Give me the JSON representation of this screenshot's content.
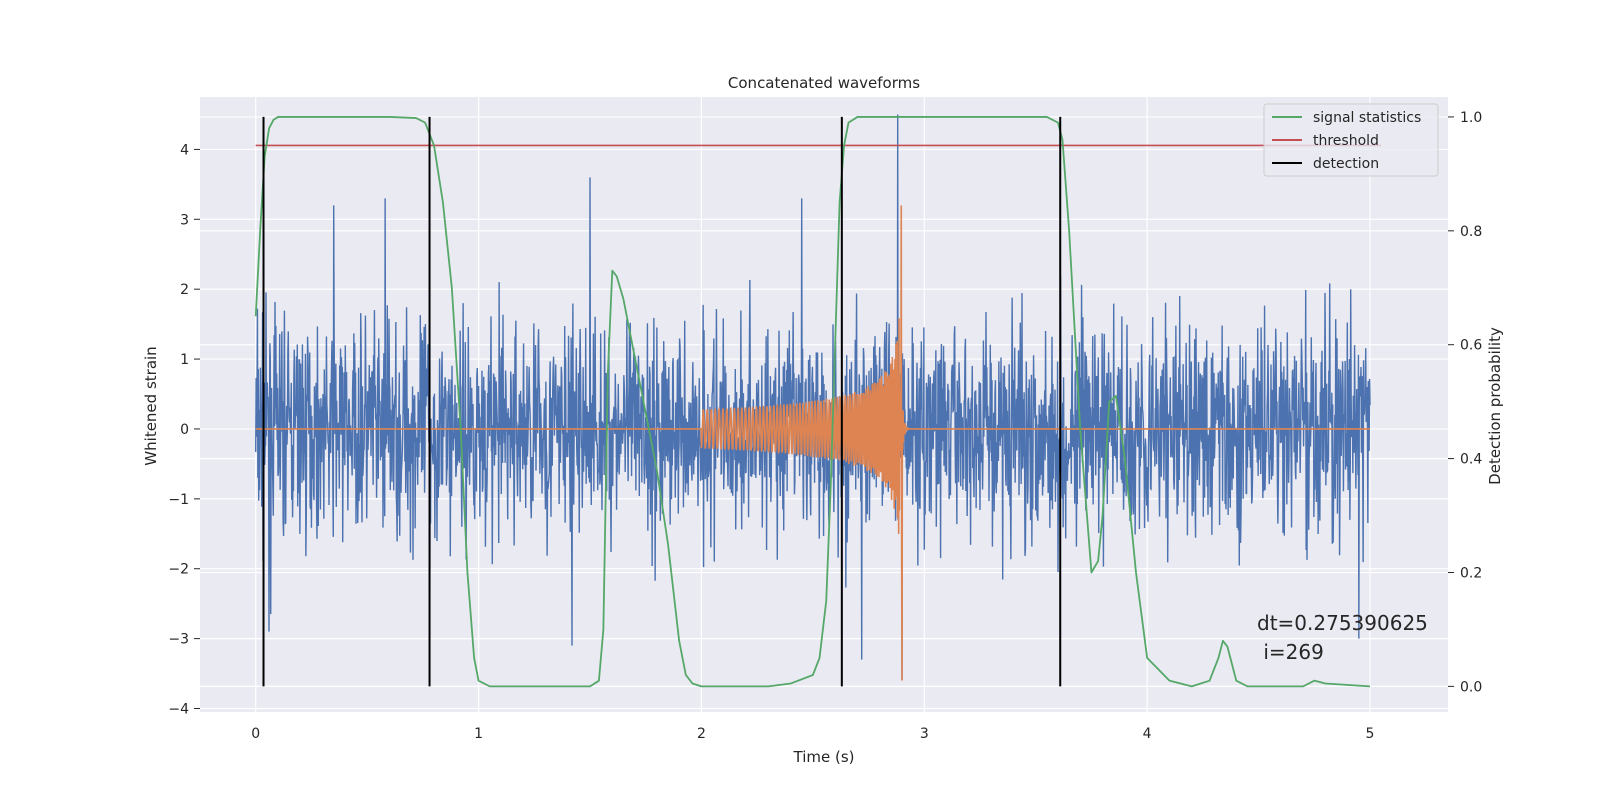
{
  "chart_data": {
    "type": "line",
    "title": "Concatenated waveforms",
    "xlabel": "Time (s)",
    "ylabel": "Whitened strain",
    "y2label": "Detection probability",
    "xlim": [
      -0.25,
      5.35
    ],
    "ylim": [
      -4.05,
      4.75
    ],
    "y2lim": [
      -0.045,
      1.035
    ],
    "xticks": [
      0,
      1,
      2,
      3,
      4,
      5
    ],
    "yticks": [
      -4,
      -3,
      -2,
      -1,
      0,
      1,
      2,
      3,
      4
    ],
    "y2ticks": [
      0.0,
      0.2,
      0.4,
      0.6,
      0.8,
      1.0
    ],
    "x_tick_labels": [
      "0",
      "1",
      "2",
      "3",
      "4",
      "5"
    ],
    "y_tick_labels": [
      "−4",
      "−3",
      "−2",
      "−1",
      "0",
      "1",
      "2",
      "3",
      "4"
    ],
    "y2_tick_labels": [
      "0.0",
      "0.2",
      "0.4",
      "0.6",
      "0.8",
      "1.0"
    ],
    "grid": true,
    "legend_position": "top-right",
    "colors": {
      "strain": "#4c72b0",
      "template": "#dd8452",
      "signal_statistics": "#55a868",
      "threshold": "#c44e52",
      "detection": "#000000",
      "background": "#eaeaf2",
      "grid": "#ffffff"
    },
    "series": [
      {
        "name": "",
        "axis": "left",
        "kind": "noise",
        "x_range": [
          0,
          5
        ],
        "amplitude_envelope": 1.25,
        "peaks": [
          [
            0.35,
            3.2
          ],
          [
            0.58,
            3.3
          ],
          [
            1.5,
            3.6
          ],
          [
            2.45,
            3.3
          ],
          [
            2.88,
            4.5
          ]
        ],
        "troughs": [
          [
            0.06,
            -2.9
          ],
          [
            0.78,
            -2.9
          ],
          [
            1.42,
            -3.1
          ],
          [
            2.72,
            -3.3
          ],
          [
            2.9,
            -3.6
          ],
          [
            4.95,
            -3.0
          ]
        ]
      },
      {
        "name": "",
        "axis": "left",
        "kind": "chirp",
        "x_range": [
          0,
          5
        ],
        "chirp_start": 2.0,
        "merger": 2.9,
        "start_amplitude": 0.28,
        "peak": 3.2,
        "trough": -3.6
      },
      {
        "name": "signal statistics",
        "axis": "right",
        "x": [
          0.0,
          0.02,
          0.04,
          0.06,
          0.08,
          0.1,
          0.15,
          0.3,
          0.6,
          0.72,
          0.76,
          0.8,
          0.84,
          0.88,
          0.92,
          0.95,
          0.98,
          1.0,
          1.05,
          1.2,
          1.4,
          1.5,
          1.54,
          1.56,
          1.58,
          1.6,
          1.62,
          1.65,
          1.7,
          1.75,
          1.8,
          1.85,
          1.9,
          1.93,
          1.96,
          2.0,
          2.1,
          2.3,
          2.4,
          2.5,
          2.53,
          2.56,
          2.58,
          2.6,
          2.62,
          2.64,
          2.66,
          2.7,
          2.75,
          2.8,
          3.0,
          3.3,
          3.55,
          3.6,
          3.62,
          3.65,
          3.7,
          3.75,
          3.78,
          3.8,
          3.83,
          3.86,
          3.9,
          3.95,
          4.0,
          4.1,
          4.2,
          4.28,
          4.32,
          4.34,
          4.36,
          4.4,
          4.45,
          4.6,
          4.7,
          4.75,
          4.8,
          5.0
        ],
        "values": [
          0.65,
          0.8,
          0.93,
          0.98,
          0.995,
          1.0,
          1.0,
          1.0,
          1.0,
          0.998,
          0.99,
          0.95,
          0.85,
          0.7,
          0.45,
          0.2,
          0.05,
          0.01,
          0.0,
          0.0,
          0.0,
          0.0,
          0.01,
          0.1,
          0.55,
          0.73,
          0.72,
          0.68,
          0.58,
          0.48,
          0.38,
          0.25,
          0.08,
          0.02,
          0.005,
          0.0,
          0.0,
          0.0,
          0.005,
          0.02,
          0.05,
          0.15,
          0.35,
          0.6,
          0.85,
          0.95,
          0.99,
          1.0,
          1.0,
          1.0,
          1.0,
          1.0,
          1.0,
          0.99,
          0.96,
          0.8,
          0.45,
          0.2,
          0.22,
          0.3,
          0.5,
          0.51,
          0.4,
          0.2,
          0.05,
          0.01,
          0.0,
          0.01,
          0.05,
          0.08,
          0.07,
          0.01,
          0.0,
          0.0,
          0.0,
          0.01,
          0.005,
          0.0
        ]
      },
      {
        "name": "threshold",
        "axis": "right",
        "x": [
          0,
          5.05
        ],
        "values": [
          0.95,
          0.95
        ]
      },
      {
        "name": "detection",
        "axis": "right",
        "kind": "vlines",
        "x": [
          0.035,
          0.78,
          2.63,
          3.61
        ],
        "ymin": 0.0,
        "ymax": 1.0
      }
    ],
    "annotations": [
      "dt=0.275390625",
      " i=269"
    ]
  }
}
